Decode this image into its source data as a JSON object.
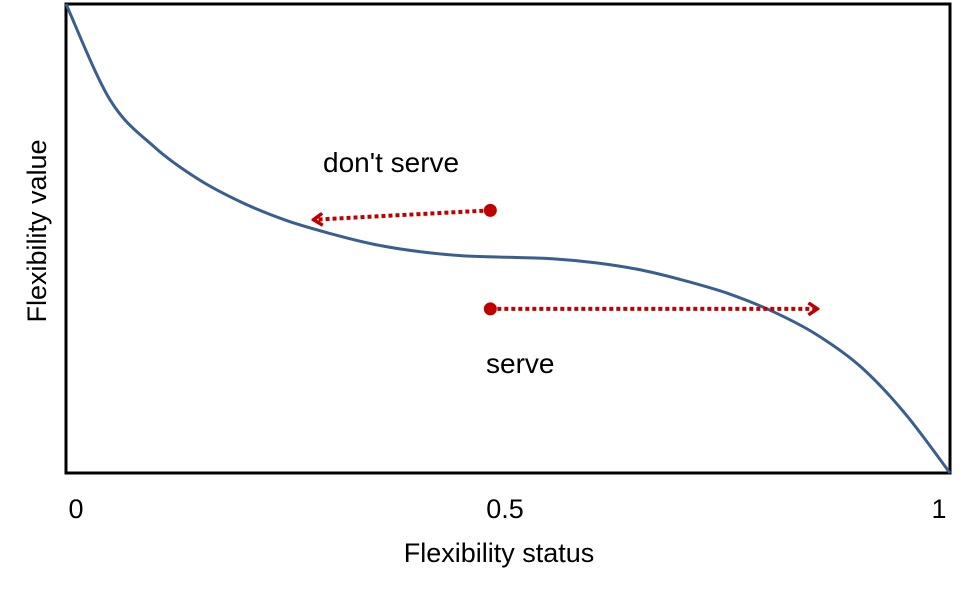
{
  "chart_data": {
    "type": "line",
    "title": "",
    "xlabel": "Flexibility status",
    "ylabel": "Flexibility value",
    "xlim": [
      0,
      1
    ],
    "x_ticks": [
      "0",
      "0.5",
      "1"
    ],
    "y_ticks": [],
    "grid": false,
    "legend": "none",
    "series": [
      {
        "color": "#3a5f8f",
        "x": [
          0,
          0.05,
          0.1,
          0.15,
          0.2,
          0.25,
          0.3,
          0.35,
          0.4,
          0.45,
          0.5,
          0.55,
          0.6,
          0.65,
          0.7,
          0.75,
          0.8,
          0.85,
          0.9,
          0.95,
          1
        ],
        "y": [
          1,
          0.795,
          0.695,
          0.626,
          0.576,
          0.538,
          0.51,
          0.487,
          0.472,
          0.463,
          0.46,
          0.457,
          0.448,
          0.433,
          0.41,
          0.382,
          0.344,
          0.294,
          0.225,
          0.125,
          0
        ]
      }
    ],
    "annotations": [
      {
        "id": "dont_serve",
        "text": "don't serve",
        "color": "#c00000",
        "from": [
          0.48,
          0.56
        ],
        "to": [
          0.28,
          0.54
        ]
      },
      {
        "id": "serve",
        "text": "serve",
        "color": "#c00000",
        "from": [
          0.48,
          0.35
        ],
        "to": [
          0.85,
          0.35
        ]
      }
    ]
  }
}
